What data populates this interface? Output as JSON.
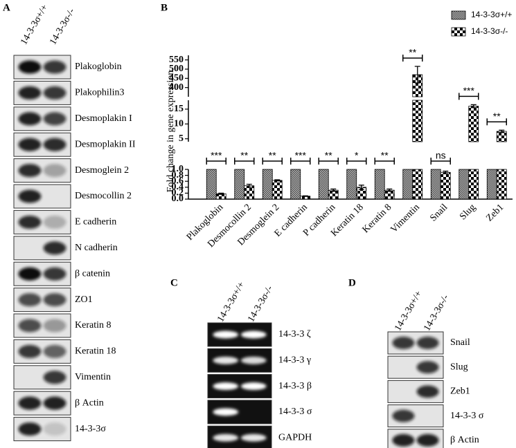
{
  "panel_a": {
    "label": "A",
    "lanes": [
      "14-3-3σ+/+",
      "14-3-3σ-/-"
    ],
    "proteins": [
      "Plakoglobin",
      "Plakophilin3",
      "Desmoplakin I",
      "Desmoplakin II",
      "Desmoglein 2",
      "Desmocollin 2",
      "E cadherin",
      "N cadherin",
      "β catenin",
      "ZO1",
      "Keratin 8",
      "Keratin 18",
      "Vimentin",
      "β Actin",
      "14-3-3σ"
    ]
  },
  "chart_data": {
    "type": "bar",
    "panel_label": "B",
    "y_label": "Fold change in gene expression",
    "categories": [
      "Plakoglobin",
      "Desmocollin 2",
      "Desmoglein 2",
      "E cadherin",
      "P cadherin",
      "Keratin 18",
      "Keratin 8",
      "Vimentin",
      "Snail",
      "Slug",
      "Zeb1"
    ],
    "series": [
      {
        "name": "14-3-3σ+/+",
        "color": "#4a4a4a",
        "values": [
          1,
          1,
          1,
          1,
          1,
          1,
          1,
          1,
          1,
          1,
          1
        ]
      },
      {
        "name": "14-3-3σ-/-",
        "color": "#000000",
        "values": [
          0.18,
          0.45,
          0.63,
          0.1,
          0.3,
          0.4,
          0.3,
          470,
          0.9,
          16,
          7.5
        ],
        "errors": [
          0.02,
          0.05,
          0.02,
          0.01,
          0.04,
          0.07,
          0.04,
          45,
          0.04,
          0.5,
          0.4
        ]
      }
    ],
    "significance": [
      "***",
      "**",
      "**",
      "***",
      "**",
      "*",
      "**",
      "**",
      "ns",
      "***",
      "**"
    ],
    "y_segments": [
      {
        "ylim": [
          0,
          1
        ],
        "yticks": [
          {
            "value": 0,
            "label": "0.0"
          },
          0.2,
          0.4,
          0.6,
          0.8,
          {
            "value": 1,
            "label": "1.0"
          }
        ]
      },
      {
        "ylim": [
          4,
          18
        ],
        "yticks": [
          5,
          10,
          15
        ]
      },
      {
        "ylim": [
          350,
          575
        ],
        "yticks": [
          400,
          450,
          500,
          550
        ]
      }
    ],
    "legend": "top-right"
  },
  "panel_c": {
    "label": "C",
    "lanes": [
      "14-3-3σ+/+",
      "14-3-3σ-/-"
    ],
    "genes": [
      "14-3-3 ζ",
      "14-3-3 γ",
      "14-3-3 β",
      "14-3-3 σ",
      "GAPDH"
    ]
  },
  "panel_d": {
    "label": "D",
    "lanes": [
      "14-3-3σ+/+",
      "14-3-3σ-/-"
    ],
    "proteins": [
      "Snail",
      "Slug",
      "Zeb1",
      "14-3-3 σ",
      "β Actin"
    ]
  }
}
